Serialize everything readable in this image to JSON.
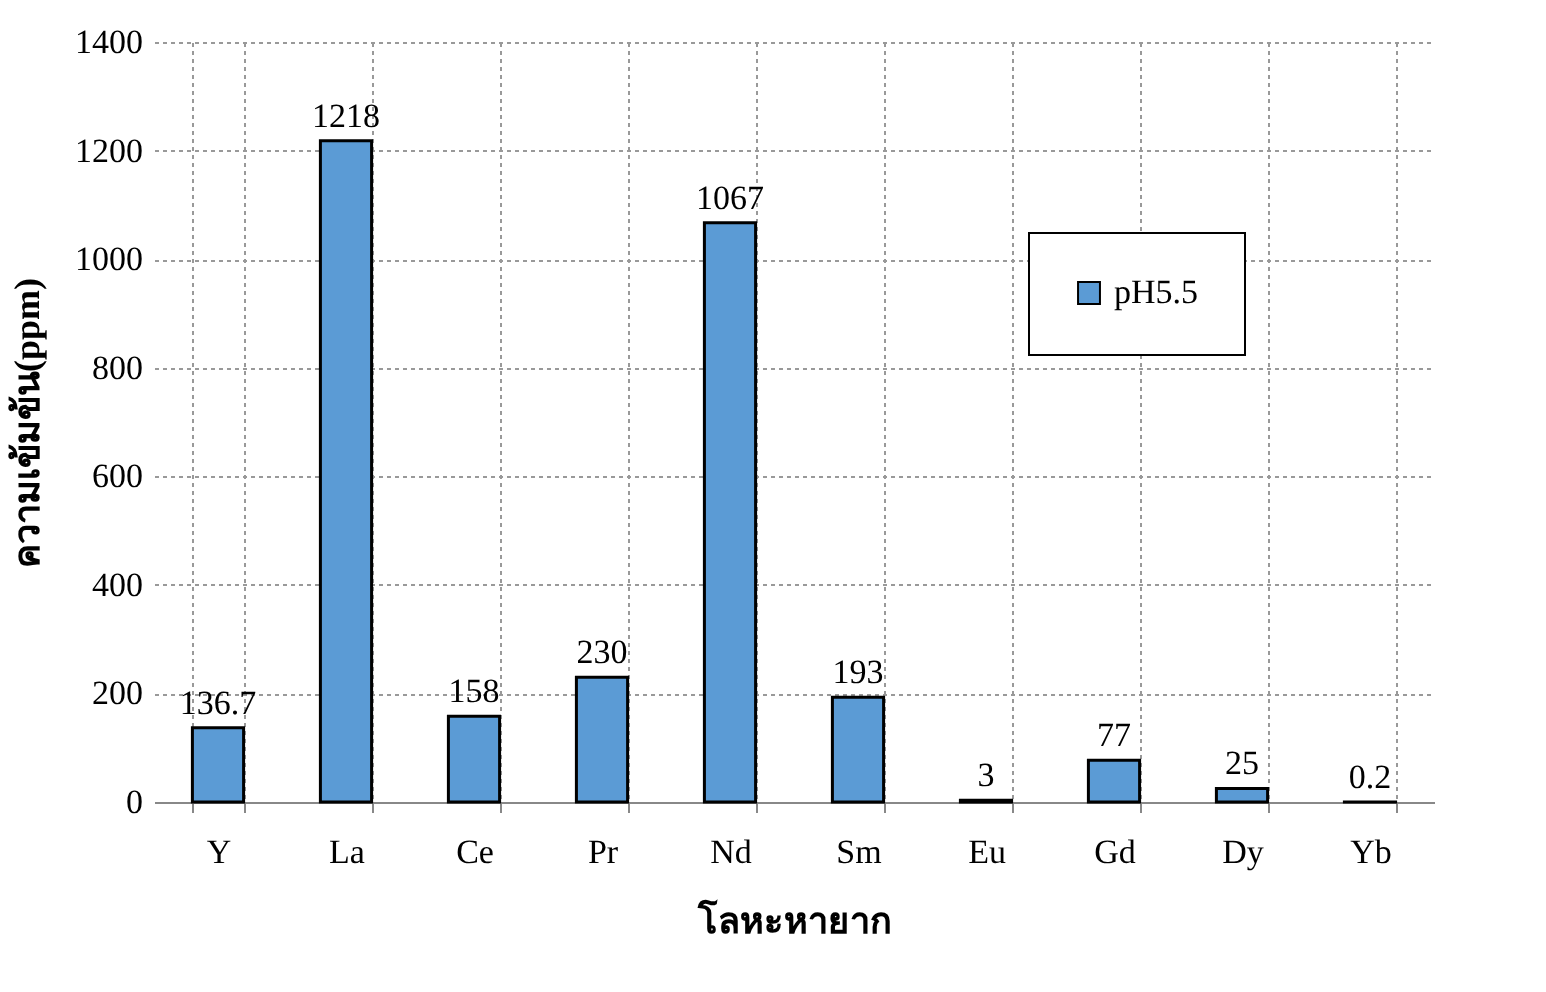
{
  "chart_data": {
    "type": "bar",
    "xlabel": "โลหะหายาก",
    "ylabel": "ความเข้มข้น(ppm)",
    "categories": [
      "Y",
      "La",
      "Ce",
      "Pr",
      "Nd",
      "Sm",
      "Eu",
      "Gd",
      "Dy",
      "Yb"
    ],
    "series": [
      {
        "name": "pH5.5",
        "color": "#5b9bd5",
        "values": [
          136.7,
          1218,
          158,
          230,
          1067,
          193,
          3,
          77,
          25,
          0.2
        ]
      }
    ],
    "ylim": [
      0,
      1400
    ],
    "yticks": [
      0,
      200,
      400,
      600,
      800,
      1000,
      1200,
      1400
    ],
    "grid": true,
    "legend": "top right",
    "data_labels": true
  }
}
